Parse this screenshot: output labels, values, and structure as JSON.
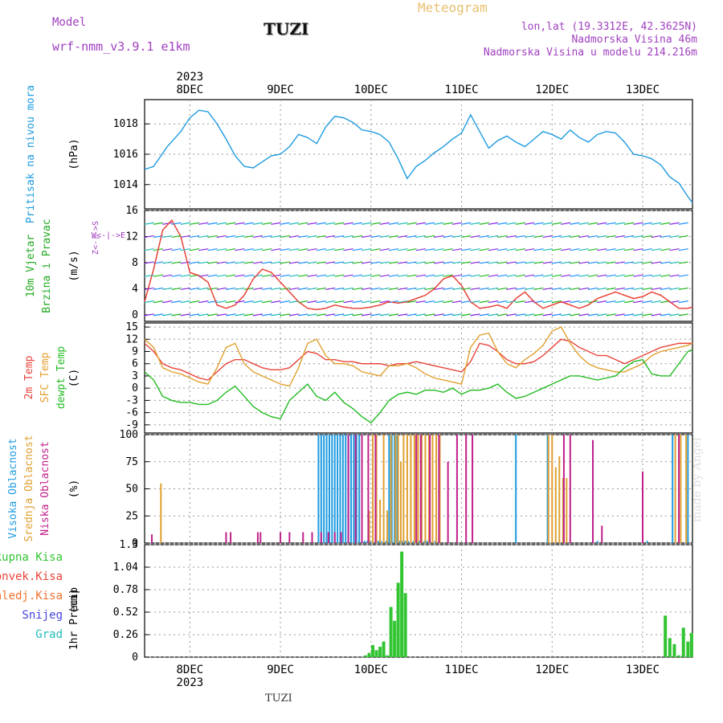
{
  "header": {
    "model_label": "Model",
    "model_name": "wrf-nmm_v3.9.1 e1km",
    "station": "TUZI",
    "meteogram": "Meteogram",
    "lonlat": "lon,lat (19.3312E, 42.3625N)",
    "altitude": "Nadmorska Visina 46m",
    "model_altitude": "Nadmorska Visina u modelu 214.216m",
    "footer_station": "TUZI",
    "watermark": "made by Angel"
  },
  "colors": {
    "pressure": "#1e9be0",
    "t2m": "#e8443a",
    "sfc": "#e0a030",
    "dewpt": "#22bb22",
    "high_cloud": "#1e9be0",
    "mid_cloud": "#e0a030",
    "low_cloud": "#c0208a",
    "precip": "#33c433",
    "conv": "#e8443a",
    "frozen": "#f07030",
    "snow": "#4444dd",
    "grad": "#22bbbb",
    "wind_label": "#22aa22",
    "direction": "#a040c0"
  },
  "time_axis": {
    "year": "2023",
    "days": [
      "8DEC",
      "9DEC",
      "10DEC",
      "11DEC",
      "12DEC",
      "13DEC"
    ],
    "day_positions": [
      0.5,
      1.5,
      2.5,
      3.5,
      4.5,
      5.5
    ],
    "start": 0,
    "end": 6.05
  },
  "chart_data": [
    {
      "type": "line",
      "title": "",
      "ylabel": "Pritisak na nivou mora",
      "unit": "(hPa)",
      "ylim": [
        1012.4,
        1019.6
      ],
      "yticks": [
        "1014",
        "1016",
        "1018"
      ],
      "ytick_values": [
        1014,
        1016,
        1018
      ],
      "series": [
        {
          "name": "",
          "x": [
            0,
            0.1,
            0.25,
            0.4,
            0.5,
            0.6,
            0.7,
            0.8,
            0.9,
            1.0,
            1.1,
            1.2,
            1.3,
            1.4,
            1.5,
            1.6,
            1.7,
            1.8,
            1.9,
            2.0,
            2.1,
            2.2,
            2.3,
            2.4,
            2.5,
            2.6,
            2.7,
            2.8,
            2.9,
            3.0,
            3.1,
            3.2,
            3.3,
            3.4,
            3.5,
            3.6,
            3.7,
            3.8,
            3.9,
            4.0,
            4.1,
            4.2,
            4.3,
            4.4,
            4.5,
            4.6,
            4.7,
            4.8,
            4.9,
            5.0,
            5.1,
            5.2,
            5.3,
            5.4,
            5.5,
            5.6,
            5.7,
            5.8,
            5.9,
            6.0,
            6.05
          ],
          "values": [
            1015.0,
            1015.2,
            1016.5,
            1017.5,
            1018.4,
            1018.9,
            1018.8,
            1018.0,
            1017.0,
            1015.9,
            1015.2,
            1015.1,
            1015.5,
            1015.9,
            1016.0,
            1016.5,
            1017.3,
            1017.1,
            1016.7,
            1017.8,
            1018.5,
            1018.4,
            1018.1,
            1017.6,
            1017.5,
            1017.3,
            1016.8,
            1015.7,
            1014.4,
            1015.2,
            1015.6,
            1016.1,
            1016.5,
            1017.0,
            1017.4,
            1018.6,
            1017.5,
            1016.4,
            1016.9,
            1017.2,
            1016.8,
            1016.5,
            1017.0,
            1017.5,
            1017.3,
            1017.0,
            1017.6,
            1017.1,
            1016.8,
            1017.3,
            1017.5,
            1017.4,
            1016.8,
            1016.0,
            1015.9,
            1015.7,
            1015.3,
            1014.5,
            1014.1,
            1013.2,
            1012.8
          ]
        }
      ]
    },
    {
      "type": "line",
      "title": "",
      "ylabel": "10m Vjetar Brzina i Pravac",
      "unit": "(m/s)",
      "ylim": [
        -1,
        16
      ],
      "yticks": [
        "0",
        "4",
        "8",
        "12",
        "16"
      ],
      "ytick_values": [
        0,
        4,
        8,
        12,
        16
      ],
      "direction_labels": [
        "W",
        "<",
        "-",
        "|",
        "-",
        ">",
        "E"
      ],
      "direction_labels_vertical": [
        "Z",
        "<",
        "-",
        "|",
        "-",
        ">",
        "S"
      ],
      "series": [
        {
          "name": "",
          "x": [
            0,
            0.1,
            0.2,
            0.3,
            0.4,
            0.5,
            0.6,
            0.7,
            0.8,
            0.9,
            1.0,
            1.1,
            1.2,
            1.3,
            1.4,
            1.5,
            1.6,
            1.7,
            1.8,
            1.9,
            2.0,
            2.1,
            2.2,
            2.3,
            2.4,
            2.5,
            2.6,
            2.7,
            2.8,
            2.9,
            3.0,
            3.1,
            3.2,
            3.3,
            3.4,
            3.5,
            3.6,
            3.7,
            3.8,
            3.9,
            4.0,
            4.1,
            4.2,
            4.3,
            4.4,
            4.5,
            4.6,
            4.7,
            4.8,
            4.9,
            5.0,
            5.1,
            5.2,
            5.3,
            5.4,
            5.5,
            5.6,
            5.7,
            5.8,
            5.9,
            6.0,
            6.05
          ],
          "values": [
            2.0,
            7.0,
            13.0,
            14.5,
            12.0,
            6.5,
            6.0,
            5.0,
            1.5,
            1.0,
            1.5,
            3.0,
            5.5,
            7.0,
            6.5,
            5.0,
            3.5,
            2.0,
            1.0,
            0.8,
            1.0,
            1.5,
            1.2,
            1.0,
            1.0,
            1.2,
            1.5,
            2.0,
            1.8,
            2.0,
            2.5,
            3.0,
            4.0,
            5.5,
            6.0,
            4.5,
            2.0,
            1.0,
            1.2,
            1.5,
            1.0,
            2.5,
            3.5,
            2.0,
            1.0,
            1.5,
            2.0,
            1.5,
            1.0,
            1.5,
            2.5,
            3.0,
            3.5,
            3.0,
            2.5,
            2.8,
            3.5,
            3.0,
            2.0,
            1.0,
            1.0,
            1.2
          ]
        }
      ]
    },
    {
      "type": "line",
      "title": "",
      "ylabel": "2m Temp / SFC Temp / dewpt Temp",
      "unit": "(C)",
      "ylim": [
        -11,
        16
      ],
      "yticks": [
        "-9",
        "-6",
        "-3",
        "0",
        "3",
        "6",
        "9",
        "12",
        "15"
      ],
      "ytick_values": [
        -9,
        -6,
        -3,
        0,
        3,
        6,
        9,
        12,
        15
      ],
      "x": [
        0,
        0.1,
        0.2,
        0.3,
        0.4,
        0.5,
        0.6,
        0.7,
        0.8,
        0.9,
        1.0,
        1.1,
        1.2,
        1.3,
        1.4,
        1.5,
        1.6,
        1.7,
        1.8,
        1.9,
        2.0,
        2.1,
        2.2,
        2.3,
        2.4,
        2.5,
        2.6,
        2.7,
        2.8,
        2.9,
        3.0,
        3.1,
        3.2,
        3.3,
        3.4,
        3.5,
        3.6,
        3.7,
        3.8,
        3.9,
        4.0,
        4.1,
        4.2,
        4.3,
        4.4,
        4.5,
        4.6,
        4.7,
        4.8,
        4.9,
        5.0,
        5.1,
        5.2,
        5.3,
        5.4,
        5.5,
        5.6,
        5.7,
        5.8,
        5.9,
        6.0,
        6.05
      ],
      "series": [
        {
          "name": "2m Temp",
          "values": [
            11.0,
            9.0,
            6.0,
            5.0,
            4.5,
            3.5,
            2.5,
            2.0,
            4.0,
            6.0,
            7.0,
            7.0,
            6.0,
            5.0,
            4.5,
            4.5,
            5.0,
            7.0,
            9.0,
            8.5,
            7.0,
            7.0,
            6.5,
            6.5,
            6.0,
            6.0,
            6.0,
            5.5,
            6.0,
            6.0,
            6.5,
            6.0,
            5.5,
            5.0,
            4.5,
            4.0,
            6.5,
            11.0,
            10.5,
            9.0,
            7.0,
            6.0,
            6.0,
            6.5,
            8.0,
            10.0,
            12.0,
            11.5,
            10.0,
            9.0,
            8.0,
            8.0,
            7.0,
            6.0,
            7.0,
            8.0,
            9.0,
            10.0,
            10.5,
            11.0,
            11.0,
            11.0
          ]
        },
        {
          "name": "SFC Temp",
          "values": [
            12.0,
            10.0,
            5.0,
            4.0,
            3.5,
            2.5,
            1.5,
            1.0,
            5.0,
            10.0,
            11.0,
            6.0,
            4.0,
            3.0,
            2.0,
            1.0,
            0.5,
            5.0,
            11.0,
            12.0,
            8.0,
            6.0,
            6.0,
            5.5,
            4.0,
            3.5,
            3.0,
            5.5,
            5.5,
            6.0,
            5.0,
            3.5,
            2.5,
            2.0,
            1.5,
            1.0,
            10.0,
            13.0,
            13.5,
            9.0,
            6.0,
            5.0,
            7.0,
            8.5,
            10.5,
            14.0,
            15.0,
            11.0,
            8.0,
            6.0,
            5.0,
            4.5,
            4.0,
            4.0,
            5.0,
            6.0,
            8.0,
            9.0,
            9.5,
            10.0,
            10.5,
            11.0
          ]
        },
        {
          "name": "dewpt Temp",
          "values": [
            4.0,
            2.0,
            -2.0,
            -3.0,
            -3.5,
            -3.5,
            -4.0,
            -4.0,
            -3.0,
            -1.0,
            0.5,
            -2.0,
            -4.5,
            -6.0,
            -7.0,
            -7.5,
            -3.0,
            -1.0,
            1.0,
            -2.0,
            -3.0,
            -1.0,
            -3.5,
            -5.0,
            -7.0,
            -8.5,
            -6.0,
            -3.0,
            -1.5,
            -1.0,
            -1.5,
            -0.5,
            -0.5,
            -1.0,
            0.0,
            -1.5,
            -0.5,
            -0.5,
            0.0,
            1.0,
            -1.0,
            -2.5,
            -2.0,
            -1.0,
            0.0,
            1.0,
            2.0,
            3.0,
            3.0,
            2.5,
            2.0,
            2.5,
            3.0,
            5.0,
            6.5,
            7.0,
            3.5,
            3.0,
            3.0,
            6.0,
            9.0,
            9.5
          ]
        }
      ]
    },
    {
      "type": "bar",
      "title": "",
      "ylabel": "Visoka Oblacnost / Srednja Oblacnost / Niska Oblacnost",
      "unit": "(%)",
      "ylim": [
        0,
        100
      ],
      "yticks": [
        "0",
        "25",
        "50",
        "75",
        "100"
      ],
      "ytick_values": [
        0,
        25,
        50,
        75,
        100
      ],
      "series": [
        {
          "name": "Visoka Oblacnost",
          "x": [
            1.92,
            1.95,
            1.98,
            2.01,
            2.04,
            2.07,
            2.1,
            2.13,
            2.16,
            2.19,
            2.22,
            2.25,
            2.28,
            2.31,
            2.34,
            2.37,
            2.4,
            2.43,
            2.46,
            2.49,
            2.52,
            2.55,
            2.58,
            2.61,
            2.64,
            2.67,
            2.7,
            2.73,
            2.76,
            2.79,
            2.82,
            2.85,
            2.88,
            2.91,
            2.94,
            2.97,
            3.0,
            3.03,
            3.06,
            3.09,
            3.12,
            3.15,
            3.18,
            3.21,
            4.1,
            4.45,
            5.0,
            5.55,
            5.83,
            6.0
          ],
          "values": [
            100,
            100,
            100,
            100,
            100,
            100,
            100,
            100,
            100,
            100,
            100,
            100,
            100,
            100,
            100,
            100,
            2,
            2,
            2,
            2,
            2,
            2,
            2,
            2,
            2,
            2,
            100,
            100,
            100,
            100,
            2,
            2,
            2,
            2,
            2,
            2,
            2,
            2,
            2,
            2,
            2,
            2,
            2,
            2,
            100,
            100,
            2,
            2,
            100,
            100
          ]
        },
        {
          "name": "Srednja Oblacnost",
          "x": [
            0.18,
            2.48,
            2.52,
            2.56,
            2.6,
            2.64,
            2.68,
            2.72,
            2.77,
            2.8,
            2.83,
            2.86,
            2.9,
            2.94,
            2.98,
            3.02,
            3.06,
            3.1,
            3.14,
            3.18,
            3.22,
            3.26,
            4.46,
            4.5,
            4.54,
            4.58,
            4.62,
            4.66,
            5.86,
            5.92,
            5.98
          ],
          "values": [
            55,
            30,
            100,
            100,
            40,
            100,
            30,
            100,
            100,
            100,
            75,
            100,
            100,
            100,
            100,
            100,
            100,
            100,
            100,
            100,
            100,
            100,
            100,
            100,
            70,
            80,
            60,
            60,
            100,
            100,
            100
          ]
        },
        {
          "name": "Niska Oblacnost",
          "x": [
            0.08,
            0.9,
            0.95,
            1.25,
            1.28,
            1.5,
            1.6,
            1.75,
            1.85,
            1.95,
            2.03,
            2.1,
            2.17,
            2.25,
            2.33,
            2.4,
            2.47,
            2.55,
            3.0,
            3.05,
            3.15,
            3.25,
            3.35,
            3.45,
            3.55,
            3.62,
            4.63,
            4.7,
            4.95,
            5.05,
            5.5,
            5.9
          ],
          "values": [
            8,
            10,
            10,
            10,
            10,
            10,
            10,
            10,
            10,
            10,
            10,
            10,
            10,
            100,
            100,
            100,
            100,
            100,
            100,
            100,
            100,
            100,
            75,
            100,
            100,
            100,
            100,
            100,
            95,
            16,
            66,
            100
          ]
        }
      ]
    },
    {
      "type": "bar",
      "title": "",
      "ylabel": "1hr Precip",
      "unit": "(mm)",
      "ylim": [
        0,
        1.3
      ],
      "yticks": [
        "0",
        "0.26",
        "0.52",
        "0.78",
        "1.04",
        "1.3"
      ],
      "ytick_values": [
        0,
        0.26,
        0.52,
        0.78,
        1.04,
        1.3
      ],
      "legend": [
        "Ukupna Kisa",
        "Konvek.Kisa",
        "Zaledj.Kisa",
        "Snijeg",
        "Grad"
      ],
      "series": [
        {
          "name": "Ukupna Kisa",
          "x": [
            2.44,
            2.48,
            2.52,
            2.56,
            2.6,
            2.64,
            2.68,
            2.72,
            2.76,
            2.8,
            2.84,
            2.88,
            5.75,
            5.8,
            5.85,
            5.9,
            5.95,
            6.0,
            6.04
          ],
          "values": [
            0.02,
            0.05,
            0.14,
            0.08,
            0.12,
            0.18,
            0.02,
            0.58,
            0.42,
            0.86,
            1.22,
            0.74,
            0.48,
            0.22,
            0.15,
            0.02,
            0.34,
            0.18,
            0.28
          ]
        }
      ]
    }
  ]
}
